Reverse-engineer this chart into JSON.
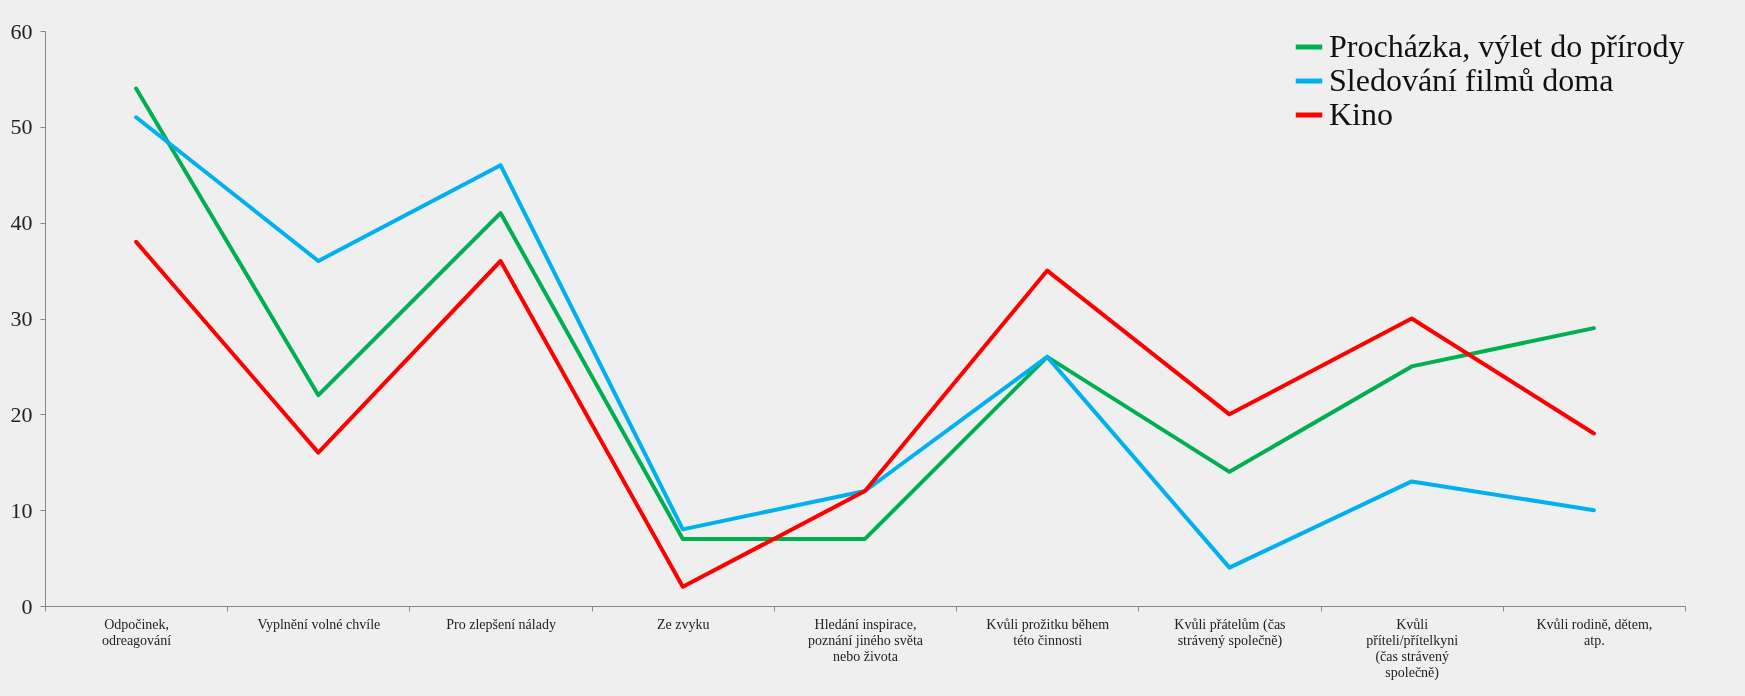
{
  "chart_data": {
    "type": "line",
    "categories": [
      "Odpočinek, odreagování",
      "Vyplnění volné chvíle",
      "Pro zlepšení nálady",
      "Ze zvyku",
      "Hledání inspirace, poznání jiného světa nebo života",
      "Kvůli prožitku během této činnosti",
      "Kvůli přátelům (čas strávený společně)",
      "Kvůli příteli/přítelkyni (čas strávený společně)",
      "Kvůli rodině, dětem, atp."
    ],
    "series": [
      {
        "name": "Procházka, výlet do přírody",
        "color": "#00b050",
        "values": [
          54,
          22,
          41,
          7,
          7,
          26,
          14,
          25,
          29
        ]
      },
      {
        "name": "Sledování filmů doma",
        "color": "#00b0f0",
        "values": [
          51,
          36,
          46,
          8,
          12,
          26,
          4,
          13,
          10
        ]
      },
      {
        "name": "Kino",
        "color": "#ff0000",
        "values": [
          38,
          16,
          36,
          2,
          12,
          35,
          20,
          30,
          18
        ]
      }
    ],
    "ylim": [
      0,
      60
    ],
    "yticks": [
      0,
      10,
      20,
      30,
      40,
      50,
      60
    ],
    "grid": false,
    "legend": "top right",
    "marker": "none",
    "line_style": "solid"
  }
}
